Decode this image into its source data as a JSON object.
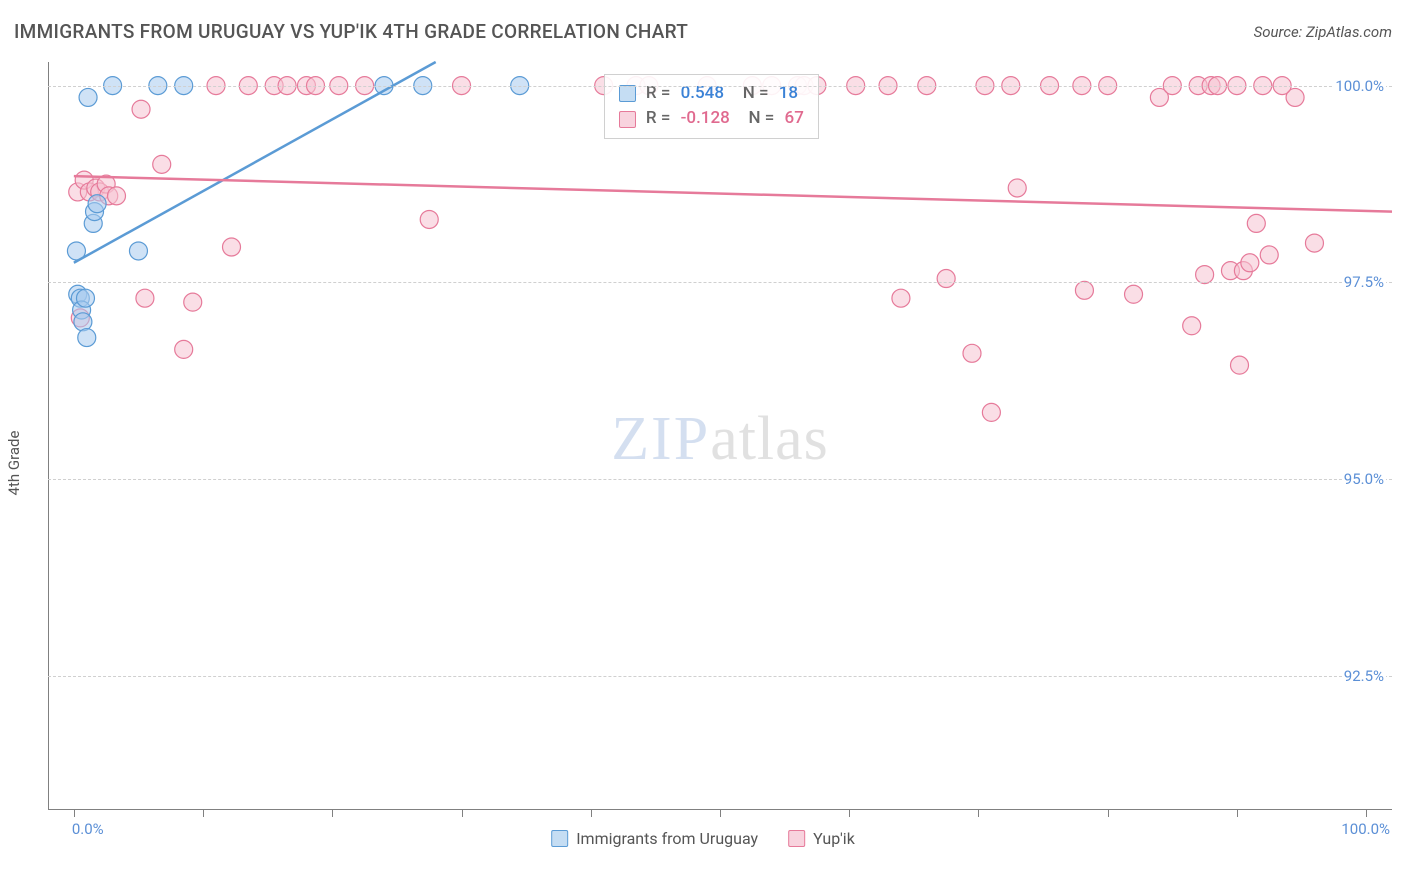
{
  "title": "IMMIGRANTS FROM URUGUAY VS YUP'IK 4TH GRADE CORRELATION CHART",
  "source": "Source: ZipAtlas.com",
  "y_axis_title": "4th Grade",
  "watermark": {
    "part1": "ZIP",
    "part2": "atlas"
  },
  "chart": {
    "type": "scatter",
    "background_color": "#ffffff",
    "grid_color": "#d0d0d0",
    "axis_color": "#808080",
    "label_color": "#5b8fd6",
    "xlim": [
      -2,
      102
    ],
    "ylim": [
      90.8,
      100.3
    ],
    "x_tick_step": 10,
    "x_end_labels": [
      "0.0%",
      "100.0%"
    ],
    "y_ticks": [
      92.5,
      95.0,
      97.5,
      100.0
    ],
    "y_tick_labels": [
      "92.5%",
      "95.0%",
      "97.5%",
      "100.0%"
    ],
    "marker_radius": 9,
    "marker_opacity": 0.55,
    "line_width": 2.5,
    "series": [
      {
        "name": "Immigrants from Uruguay",
        "color_fill": "#a7cbef",
        "color_stroke": "#5b9bd5",
        "R": "0.548",
        "N": "18",
        "line": {
          "x0": 0,
          "y0": 97.75,
          "x1": 28,
          "y1": 100.3
        },
        "points": [
          [
            0.2,
            97.9
          ],
          [
            0.3,
            97.35
          ],
          [
            0.5,
            97.3
          ],
          [
            0.6,
            97.15
          ],
          [
            0.7,
            97.0
          ],
          [
            0.9,
            97.3
          ],
          [
            1.0,
            96.8
          ],
          [
            1.1,
            99.85
          ],
          [
            1.5,
            98.25
          ],
          [
            1.6,
            98.4
          ],
          [
            1.8,
            98.5
          ],
          [
            3.0,
            100.0
          ],
          [
            5.0,
            97.9
          ],
          [
            6.5,
            100.0
          ],
          [
            8.5,
            100.0
          ],
          [
            24.0,
            100.0
          ],
          [
            27.0,
            100.0
          ],
          [
            34.5,
            100.0
          ]
        ]
      },
      {
        "name": "Yup'ik",
        "color_fill": "#f6c3d1",
        "color_stroke": "#e67a9a",
        "R": "-0.128",
        "N": "67",
        "line": {
          "x0": 0,
          "y0": 98.85,
          "x1": 102,
          "y1": 98.4
        },
        "points": [
          [
            0.3,
            98.65
          ],
          [
            0.5,
            97.05
          ],
          [
            0.8,
            98.8
          ],
          [
            1.2,
            98.65
          ],
          [
            1.7,
            98.7
          ],
          [
            2.0,
            98.65
          ],
          [
            2.5,
            98.75
          ],
          [
            2.7,
            98.6
          ],
          [
            3.3,
            98.6
          ],
          [
            5.2,
            99.7
          ],
          [
            5.5,
            97.3
          ],
          [
            6.8,
            99.0
          ],
          [
            8.5,
            96.65
          ],
          [
            9.2,
            97.25
          ],
          [
            11.0,
            100.0
          ],
          [
            12.2,
            97.95
          ],
          [
            13.5,
            100.0
          ],
          [
            15.5,
            100.0
          ],
          [
            16.5,
            100.0
          ],
          [
            18.0,
            100.0
          ],
          [
            18.7,
            100.0
          ],
          [
            20.5,
            100.0
          ],
          [
            22.5,
            100.0
          ],
          [
            27.5,
            98.3
          ],
          [
            30.0,
            100.0
          ],
          [
            41.0,
            100.0
          ],
          [
            43.5,
            100.0
          ],
          [
            44.5,
            100.0
          ],
          [
            49.0,
            100.0
          ],
          [
            52.5,
            100.0
          ],
          [
            54.0,
            100.0
          ],
          [
            56.0,
            100.0
          ],
          [
            56.5,
            100.0
          ],
          [
            57.5,
            100.0
          ],
          [
            60.5,
            100.0
          ],
          [
            63.0,
            100.0
          ],
          [
            64.0,
            97.3
          ],
          [
            66.0,
            100.0
          ],
          [
            67.5,
            97.55
          ],
          [
            69.5,
            96.6
          ],
          [
            70.5,
            100.0
          ],
          [
            71.0,
            95.85
          ],
          [
            72.5,
            100.0
          ],
          [
            73.0,
            98.7
          ],
          [
            75.5,
            100.0
          ],
          [
            78.0,
            100.0
          ],
          [
            78.2,
            97.4
          ],
          [
            80.0,
            100.0
          ],
          [
            82.0,
            97.35
          ],
          [
            84.0,
            99.85
          ],
          [
            85.0,
            100.0
          ],
          [
            86.5,
            96.95
          ],
          [
            87.0,
            100.0
          ],
          [
            87.5,
            97.6
          ],
          [
            88.0,
            100.0
          ],
          [
            88.5,
            100.0
          ],
          [
            89.5,
            97.65
          ],
          [
            90.0,
            100.0
          ],
          [
            90.2,
            96.45
          ],
          [
            90.5,
            97.65
          ],
          [
            91.0,
            97.75
          ],
          [
            91.5,
            98.25
          ],
          [
            92.5,
            97.85
          ],
          [
            94.5,
            99.85
          ],
          [
            92.0,
            100.0
          ],
          [
            93.5,
            100.0
          ],
          [
            96.0,
            98.0
          ]
        ]
      }
    ]
  },
  "legend_top": {
    "rows": [
      {
        "swatch_fill": "#c5ddf3",
        "swatch_stroke": "#5b9bd5",
        "r_label": "R =",
        "r_val": "0.548",
        "n_label": "N =",
        "n_val": "18",
        "val_class": "val-b"
      },
      {
        "swatch_fill": "#f8d3de",
        "swatch_stroke": "#e67a9a",
        "r_label": "R =",
        "r_val": "-0.128",
        "n_label": "N =",
        "n_val": "67",
        "val_class": "val-p"
      }
    ]
  },
  "legend_bottom": {
    "items": [
      {
        "swatch_fill": "#c5ddf3",
        "swatch_stroke": "#5b9bd5",
        "label": "Immigrants from Uruguay"
      },
      {
        "swatch_fill": "#f8d3de",
        "swatch_stroke": "#e67a9a",
        "label": "Yup'ik"
      }
    ]
  }
}
